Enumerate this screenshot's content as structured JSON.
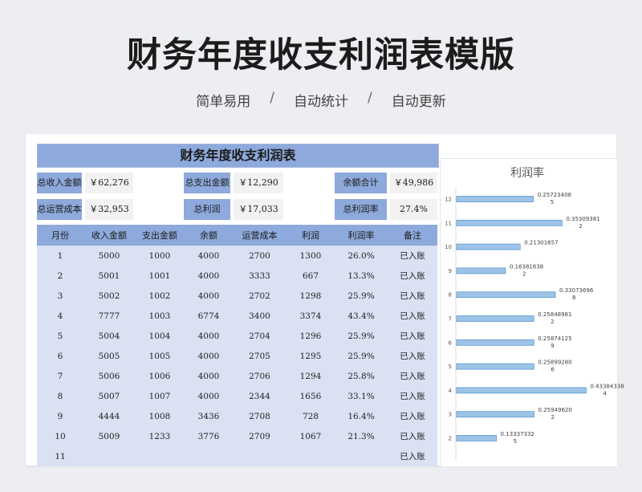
{
  "page": {
    "title": "财务年度收支利润表模版",
    "tags": [
      "简单易用",
      "自动统计",
      "自动更新"
    ],
    "separator": "/"
  },
  "sheet": {
    "title": "财务年度收支利润表",
    "summary": [
      {
        "label": "总收入金额",
        "value": "￥62,276"
      },
      {
        "label": "总支出金额",
        "value": "￥12,290"
      },
      {
        "label": "余额合计",
        "value": "￥49,986"
      },
      {
        "label": "总运营成本",
        "value": "￥32,953"
      },
      {
        "label": "总利润",
        "value": "￥17,033"
      },
      {
        "label": "总利润率",
        "value": "27.4%"
      }
    ],
    "columns": [
      "月份",
      "收入金额",
      "支出金额",
      "余额",
      "运营成本",
      "利润",
      "利润率",
      "备注"
    ],
    "rows": [
      [
        "1",
        "5000",
        "1000",
        "4000",
        "2700",
        "1300",
        "26.0%",
        "已入账"
      ],
      [
        "2",
        "5001",
        "1001",
        "4000",
        "3333",
        "667",
        "13.3%",
        "已入账"
      ],
      [
        "3",
        "5002",
        "1002",
        "4000",
        "2702",
        "1298",
        "25.9%",
        "已入账"
      ],
      [
        "4",
        "7777",
        "1003",
        "6774",
        "3400",
        "3374",
        "43.4%",
        "已入账"
      ],
      [
        "5",
        "5004",
        "1004",
        "4000",
        "2704",
        "1296",
        "25.9%",
        "已入账"
      ],
      [
        "6",
        "5005",
        "1005",
        "4000",
        "2705",
        "1295",
        "25.9%",
        "已入账"
      ],
      [
        "7",
        "5006",
        "1006",
        "4000",
        "2706",
        "1294",
        "25.8%",
        "已入账"
      ],
      [
        "8",
        "5007",
        "1007",
        "4000",
        "2344",
        "1656",
        "33.1%",
        "已入账"
      ],
      [
        "9",
        "4444",
        "1008",
        "3436",
        "2708",
        "728",
        "16.4%",
        "已入账"
      ],
      [
        "10",
        "5009",
        "1233",
        "3776",
        "2709",
        "1067",
        "21.3%",
        "已入账"
      ],
      [
        "11",
        "",
        "",
        "",
        "",
        "",
        "",
        "已入账"
      ]
    ]
  },
  "chart_data": {
    "type": "bar",
    "orientation": "horizontal",
    "title": "利润率",
    "categories": [
      "2",
      "3",
      "4",
      "5",
      "6",
      "7",
      "8",
      "9",
      "10",
      "11",
      "12"
    ],
    "values": [
      0.133373325,
      0.259496202,
      0.433843384,
      0.258992806,
      0.258741259,
      0.258489812,
      0.330736968,
      0.163816382,
      0.21301657,
      0.353093812,
      0.257234085
    ],
    "labels": [
      [
        "0.13337332",
        "5"
      ],
      [
        "0.25949620",
        "2"
      ],
      [
        "0.43384338",
        "4"
      ],
      [
        "0.25899280",
        "6"
      ],
      [
        "0.25874125",
        "9"
      ],
      [
        "0.25848981",
        "2"
      ],
      [
        "0.33073696",
        "8"
      ],
      [
        "0.16381638",
        "2"
      ],
      [
        "0.21301657",
        ""
      ],
      [
        "0.35309381",
        "2"
      ],
      [
        "0.25723408",
        "5"
      ]
    ],
    "xlim": [
      0,
      0.5
    ],
    "grid": false,
    "bar_color": "#9dc3e6",
    "bar_edge_color": "#5b9bd5"
  }
}
